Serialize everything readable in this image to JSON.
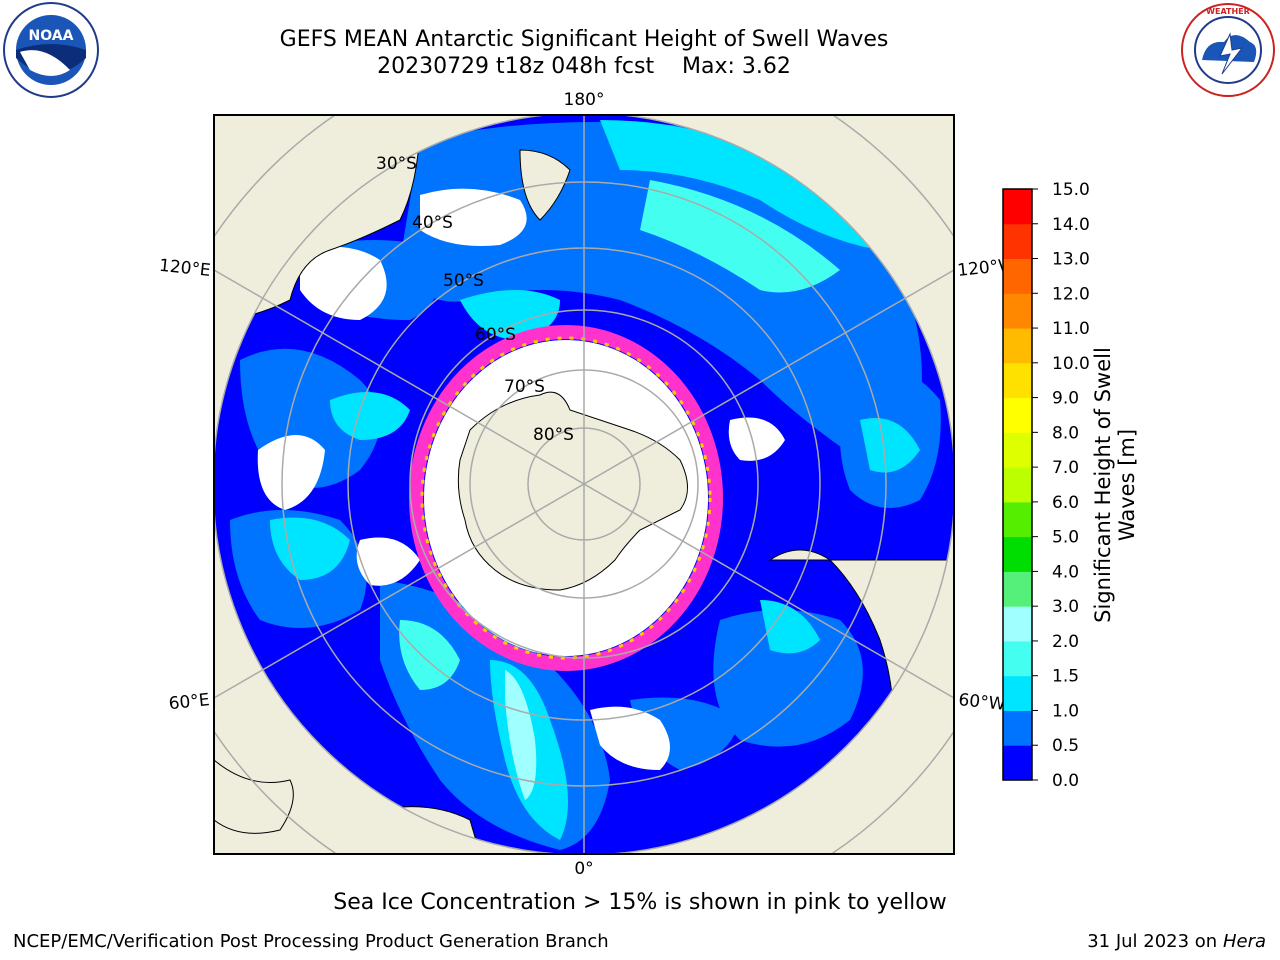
{
  "header": {
    "title_line1": "GEFS MEAN Antarctic Significant Height of Swell Waves",
    "title_line2": "20230729 t18z 048h fcst    Max: 3.62"
  },
  "map": {
    "projection": "south-polar-stereographic",
    "lon_labels": {
      "top": "180°",
      "bottom": "0°",
      "left_upper": "120°E",
      "left_lower": "60°E",
      "right_upper": "120°W",
      "right_lower": "60°W"
    },
    "lat_labels": [
      "30°S",
      "40°S",
      "50°S",
      "60°S",
      "70°S",
      "80°S"
    ],
    "land_color": "#efeedd",
    "ocean_levels_colors": [
      "#0000ff",
      "#0073ff",
      "#00e5ff",
      "#44ffee",
      "#a0ffff"
    ],
    "sea_ice_colors": [
      "#ff33cc",
      "#ff77aa",
      "#ffcc00"
    ]
  },
  "colorbar": {
    "label": "Significant Height of Swell Waves [m]",
    "ticks": [
      "0.0",
      "0.5",
      "1.0",
      "1.5",
      "2.0",
      "3.0",
      "4.0",
      "5.0",
      "6.0",
      "7.0",
      "8.0",
      "9.0",
      "10.0",
      "11.0",
      "12.0",
      "13.0",
      "14.0",
      "15.0"
    ],
    "colors": [
      "#0000ff",
      "#0073ff",
      "#00e5ff",
      "#44fff0",
      "#a0ffff",
      "#55f07a",
      "#00dd00",
      "#55ee00",
      "#bbff00",
      "#ddff00",
      "#ffff00",
      "#ffe100",
      "#ffbb00",
      "#ff8800",
      "#ff6600",
      "#ff3300",
      "#ff0000"
    ]
  },
  "note": "Sea Ice Concentration > 15% is shown in pink to yellow",
  "footer": {
    "left": "NCEP/EMC/Verification Post Processing Product Generation Branch",
    "right_date": "31 Jul 2023 on ",
    "right_host": "Hera"
  },
  "logos": {
    "left": "NOAA",
    "right": "NATIONAL WEATHER SERVICE"
  }
}
